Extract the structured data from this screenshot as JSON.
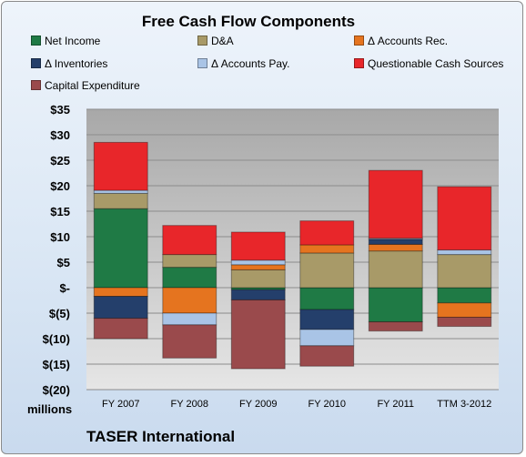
{
  "chart_data": {
    "type": "bar",
    "stacked": true,
    "title": "Free Cash Flow Components",
    "categories": [
      "FY 2007",
      "FY 2008",
      "FY 2009",
      "FY 2010",
      "FY 2011",
      "TTM 3-2012"
    ],
    "ylim": [
      -20,
      35
    ],
    "yticks": [
      {
        "value": 35,
        "label": "$35"
      },
      {
        "value": 30,
        "label": "$30"
      },
      {
        "value": 25,
        "label": "$25"
      },
      {
        "value": 20,
        "label": "$20"
      },
      {
        "value": 15,
        "label": "$15"
      },
      {
        "value": 10,
        "label": "$10"
      },
      {
        "value": 5,
        "label": "$5"
      },
      {
        "value": 0,
        "label": "$-"
      },
      {
        "value": -5,
        "label": "$(5)"
      },
      {
        "value": -10,
        "label": "$(10)"
      },
      {
        "value": -15,
        "label": "$(15)"
      },
      {
        "value": -20,
        "label": "$(20)"
      }
    ],
    "grid": true,
    "legend_position": "top",
    "series": [
      {
        "name": "Net Income",
        "color": "#1f7a45",
        "values": [
          15.5,
          4.0,
          -0.4,
          -4.3,
          -6.7,
          -3.0
        ]
      },
      {
        "name": "D&A",
        "color": "#a89a68",
        "values": [
          3.0,
          2.5,
          3.5,
          6.8,
          7.2,
          6.5
        ]
      },
      {
        "name": "Δ Accounts Rec.",
        "color": "#e5741f",
        "values": [
          -1.7,
          -5.0,
          1.0,
          1.6,
          1.3,
          -2.8
        ]
      },
      {
        "name": "Δ Inventories",
        "color": "#243f6b",
        "values": [
          -4.3,
          0.0,
          -2.0,
          -3.9,
          1.0,
          0.0
        ]
      },
      {
        "name": "Δ Accounts Pay.",
        "color": "#a9c4e6",
        "values": [
          0.6,
          -2.3,
          0.9,
          -3.2,
          0.2,
          0.9
        ]
      },
      {
        "name": "Questionable Cash Sources",
        "color": "#e8262a",
        "values": [
          9.4,
          5.7,
          5.5,
          4.7,
          13.3,
          12.4
        ]
      },
      {
        "name": "Capital Expenditure",
        "color": "#9a4a4c",
        "values": [
          -4.0,
          -6.5,
          -13.5,
          -4.0,
          -1.8,
          -1.8
        ]
      }
    ]
  },
  "legend": [
    "Net Income",
    "D&A",
    "Δ Accounts Rec.",
    "Δ Inventories",
    "Δ Accounts Pay.",
    "Questionable Cash Sources",
    "Capital Expenditure"
  ],
  "units_label": "millions",
  "company": "TASER International"
}
